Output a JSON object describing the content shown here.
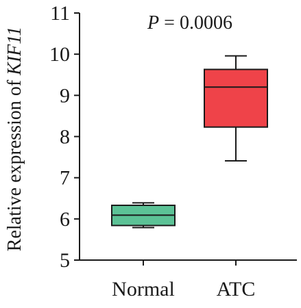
{
  "chart_data": {
    "type": "box",
    "title": "",
    "ylabel_prefix": "Relative expression of ",
    "ylabel_gene": "KIF11",
    "annotation": {
      "p_label": "P",
      "p_text": " = 0.0006"
    },
    "ylim": [
      5,
      11
    ],
    "yticks": [
      5,
      6,
      7,
      8,
      9,
      10,
      11
    ],
    "categories": [
      "Normal",
      "ATC"
    ],
    "boxes": [
      {
        "category": "Normal",
        "min": 5.79,
        "q1": 5.84,
        "median": 6.09,
        "q3": 6.33,
        "max": 6.39,
        "color": "#5cc296"
      },
      {
        "category": "ATC",
        "min": 7.41,
        "q1": 8.23,
        "median": 9.2,
        "q3": 9.63,
        "max": 9.96,
        "color": "#ef4349"
      }
    ],
    "grid": false,
    "legend": "none"
  }
}
